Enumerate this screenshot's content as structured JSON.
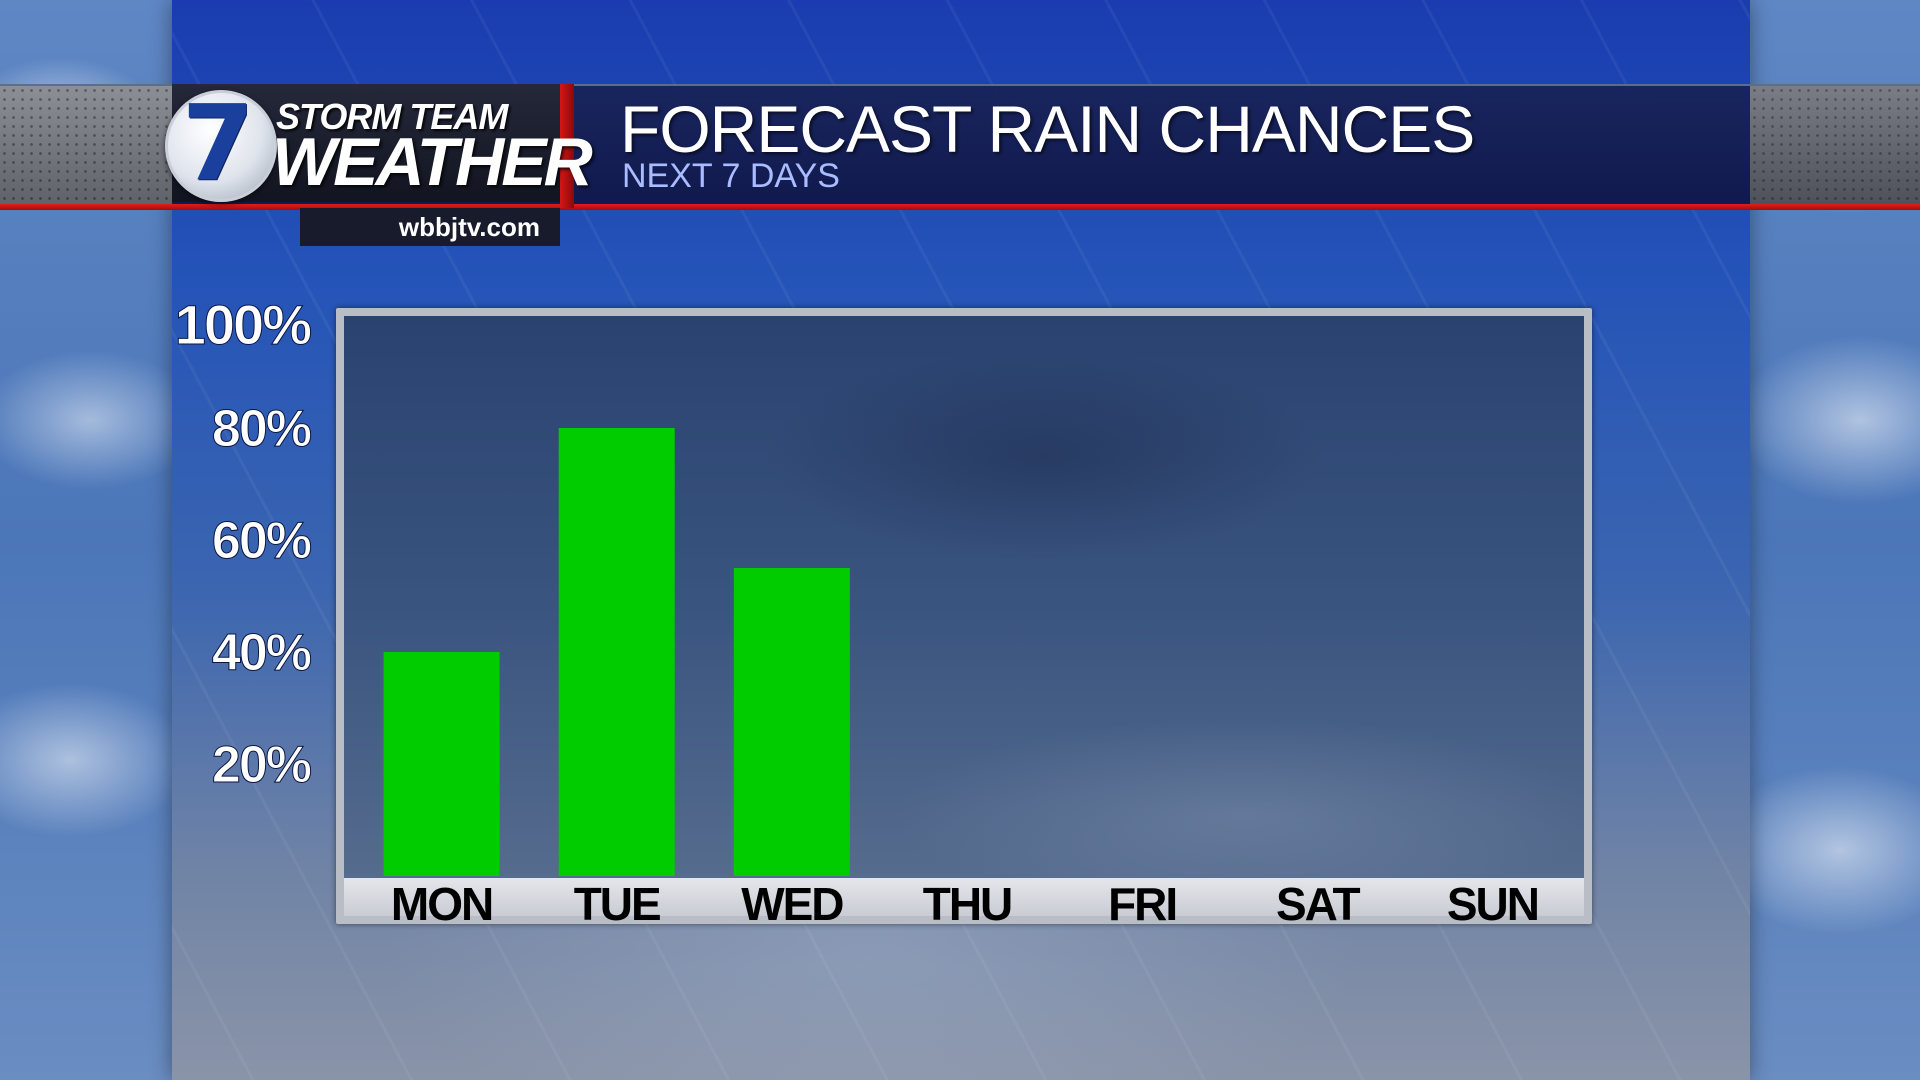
{
  "brand": {
    "logo_number": "7",
    "storm_team": "STORM TEAM",
    "weather": "WEATHER",
    "url": "wbbjtv.com"
  },
  "header": {
    "title": "FORECAST RAIN CHANCES",
    "subtitle": "NEXT 7 DAYS"
  },
  "colors": {
    "bar": "#00cc00",
    "accent_red": "#d51616",
    "tick_label": "#ffffff",
    "category_label": "#000000"
  },
  "chart_data": {
    "type": "bar",
    "categories": [
      "MON",
      "TUE",
      "WED",
      "THU",
      "FRI",
      "SAT",
      "SUN"
    ],
    "values": [
      40,
      80,
      55,
      0,
      0,
      0,
      0
    ],
    "yticks": [
      "20%",
      "40%",
      "60%",
      "80%",
      "100%"
    ],
    "ytick_values": [
      20,
      40,
      60,
      80,
      100
    ],
    "ylim": [
      0,
      100
    ],
    "xlabel": "",
    "ylabel": "",
    "grid": false,
    "legend": "none"
  }
}
